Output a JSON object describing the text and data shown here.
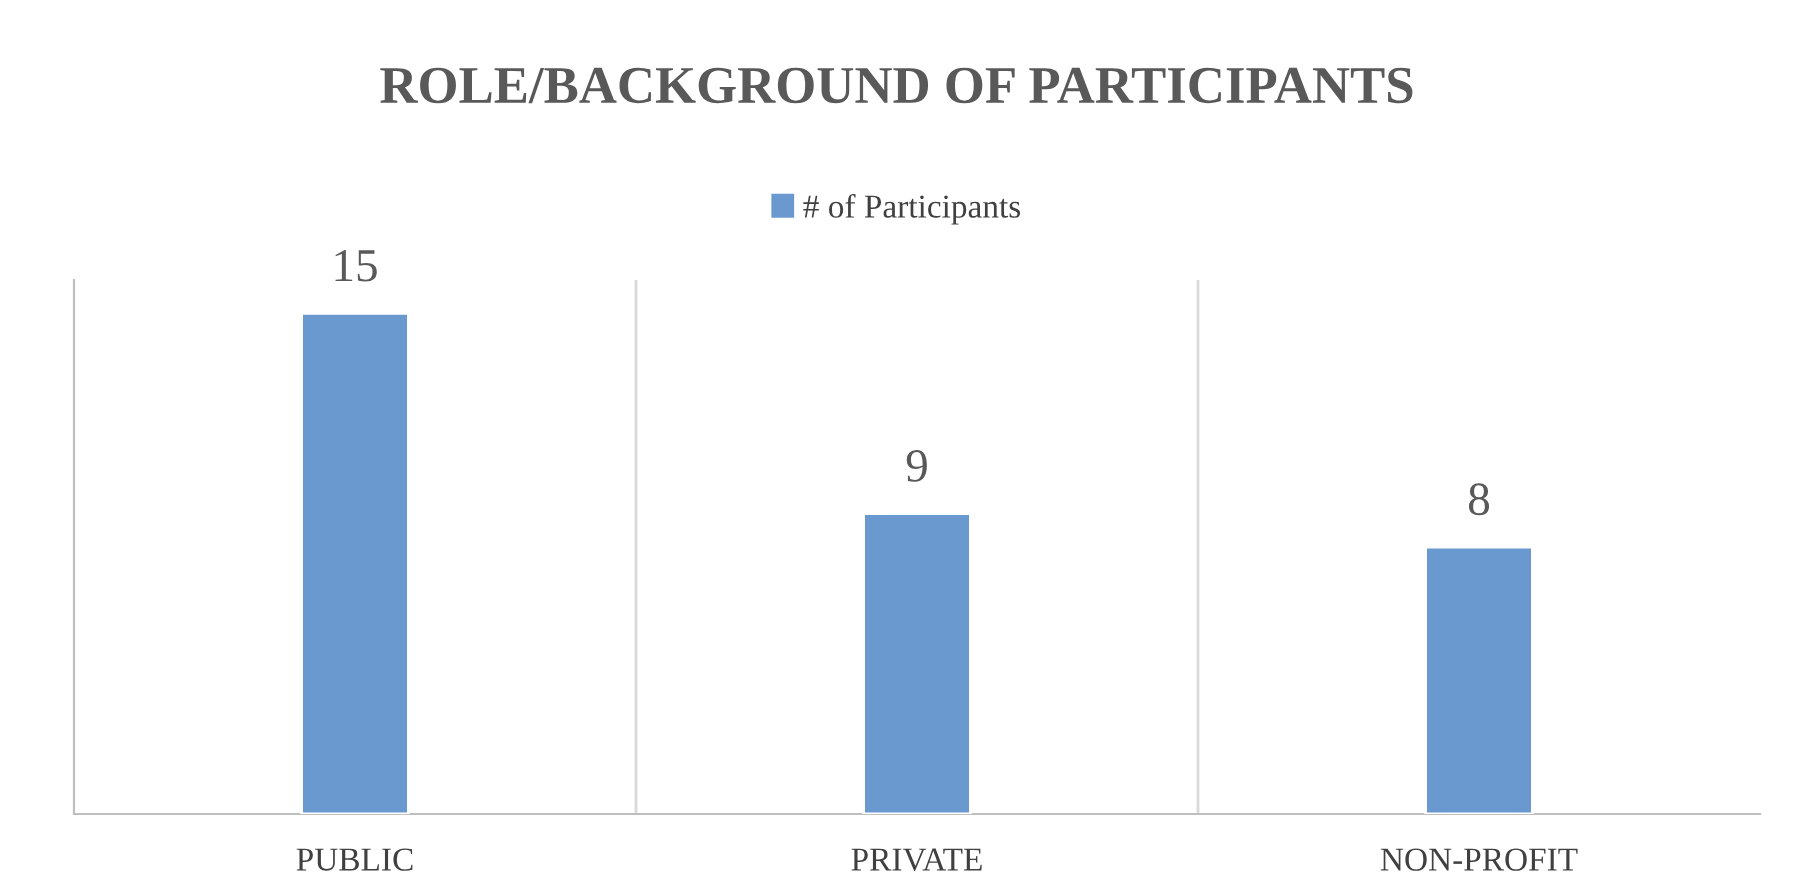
{
  "chart_data": {
    "type": "bar",
    "title": "ROLE/BACKGROUND OF PARTICIPANTS",
    "categories": [
      "PUBLIC",
      "PRIVATE",
      "NON-PROFIT"
    ],
    "series": [
      {
        "name": "# of Participants",
        "color": "#6a99d0",
        "values": [
          15,
          9,
          8
        ]
      }
    ],
    "ylim": [
      0,
      16
    ],
    "data_labels": true,
    "legend": "top",
    "grid": "x",
    "tick_labels": "x"
  }
}
